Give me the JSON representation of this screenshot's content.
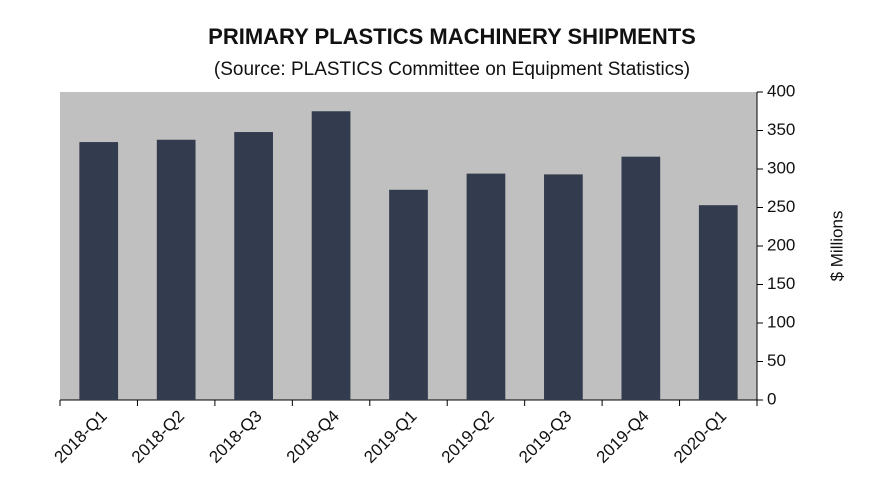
{
  "chart_data": {
    "type": "bar",
    "title": "PRIMARY PLASTICS MACHINERY SHIPMENTS",
    "subtitle": "(Source: PLASTICS Committee on Equipment Statistics)",
    "y_label": "$ Millions",
    "categories": [
      "2018-Q1",
      "2018-Q2",
      "2018-Q3",
      "2018-Q4",
      "2019-Q1",
      "2019-Q2",
      "2019-Q3",
      "2019-Q4",
      "2020-Q1"
    ],
    "values": [
      335,
      338,
      348,
      375,
      273,
      294,
      293,
      316,
      253
    ],
    "color": "#333c4e",
    "plot_background": "#c0c0c0",
    "ylim": [
      0,
      400
    ],
    "yticks": [
      0,
      50,
      100,
      150,
      200,
      250,
      300,
      350,
      400
    ],
    "y_axis_side": "right"
  }
}
